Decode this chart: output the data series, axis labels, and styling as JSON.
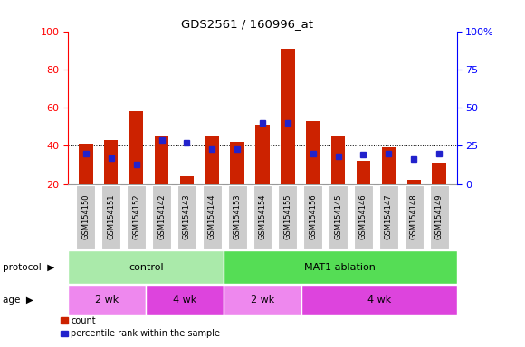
{
  "title": "GDS2561 / 160996_at",
  "samples": [
    "GSM154150",
    "GSM154151",
    "GSM154152",
    "GSM154142",
    "GSM154143",
    "GSM154144",
    "GSM154153",
    "GSM154154",
    "GSM154155",
    "GSM154156",
    "GSM154145",
    "GSM154146",
    "GSM154147",
    "GSM154148",
    "GSM154149"
  ],
  "counts": [
    41,
    43,
    58,
    45,
    24,
    45,
    42,
    51,
    91,
    53,
    45,
    32,
    39,
    22,
    31
  ],
  "percentile_ranks": [
    20,
    17,
    13,
    29,
    27,
    23,
    23,
    40,
    40,
    20,
    18,
    19,
    20,
    16,
    20
  ],
  "bar_color": "#cc2200",
  "dot_color": "#2222cc",
  "ylim_left": [
    20,
    100
  ],
  "ylim_right": [
    0,
    100
  ],
  "right_ticks": [
    0,
    25,
    50,
    75,
    100
  ],
  "right_tick_labels": [
    "0",
    "25",
    "50",
    "75",
    "100%"
  ],
  "left_ticks": [
    20,
    40,
    60,
    80,
    100
  ],
  "dotted_lines": [
    40,
    60,
    80
  ],
  "protocol_groups": [
    {
      "label": "control",
      "start": 0,
      "end": 6,
      "color": "#aaeaaa"
    },
    {
      "label": "MAT1 ablation",
      "start": 6,
      "end": 15,
      "color": "#55dd55"
    }
  ],
  "age_groups": [
    {
      "label": "2 wk",
      "start": 0,
      "end": 3,
      "color": "#ee88ee"
    },
    {
      "label": "4 wk",
      "start": 3,
      "end": 6,
      "color": "#dd44dd"
    },
    {
      "label": "2 wk",
      "start": 6,
      "end": 9,
      "color": "#ee88ee"
    },
    {
      "label": "4 wk",
      "start": 9,
      "end": 15,
      "color": "#dd44dd"
    }
  ],
  "legend_count_label": "count",
  "legend_pct_label": "percentile rank within the sample",
  "bar_width": 0.55,
  "xlabel_color": "#bbbbbb",
  "bg_color": "#ffffff",
  "dot_size": 4.0
}
